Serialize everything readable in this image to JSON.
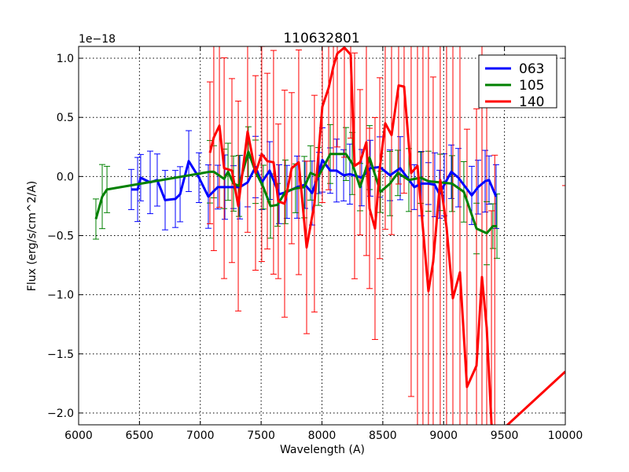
{
  "chart_data": {
    "type": "line",
    "title": "110632801",
    "xlabel": "Wavelength (A)",
    "ylabel": "Flux (erg/s/cm^2/A)",
    "offset_text": "1e−18",
    "xlim": [
      6000,
      10000
    ],
    "ylim": [
      -2.1,
      1.1
    ],
    "xticks": [
      6000,
      6500,
      7000,
      7500,
      8000,
      8500,
      9000,
      9500,
      10000
    ],
    "yticks": [
      1.0,
      0.5,
      0.0,
      -0.5,
      -1.0,
      -1.5,
      -2.0
    ],
    "ytick_labels": [
      "1.0",
      "0.5",
      "0.0",
      "−0.5",
      "−1.0",
      "−1.5",
      "−2.0"
    ],
    "grid": true,
    "legend_position": "top-right",
    "series": [
      {
        "name": "063",
        "color": "#0000ff",
        "x": [
          6433,
          6485,
          6510,
          6588,
          6646,
          6711,
          6795,
          6834,
          6905,
          6989,
          7066,
          7144,
          7202,
          7273,
          7325,
          7389,
          7454,
          7505,
          7570,
          7648,
          7712,
          7796,
          7861,
          7919,
          7977,
          8003,
          8068,
          8120,
          8178,
          8229,
          8326,
          8397,
          8475,
          8559,
          8643,
          8759,
          8817,
          8875,
          8927,
          8966,
          9005,
          9063,
          9121,
          9231,
          9283,
          9341,
          9373,
          9431
        ],
        "y": [
          -0.11,
          -0.11,
          -0.01,
          -0.05,
          -0.03,
          -0.2,
          -0.19,
          -0.15,
          0.13,
          -0.01,
          -0.17,
          -0.09,
          -0.09,
          -0.09,
          -0.09,
          -0.05,
          0.08,
          -0.05,
          0.05,
          -0.15,
          -0.13,
          -0.09,
          -0.07,
          -0.14,
          0.03,
          0.14,
          0.05,
          0.05,
          0.01,
          0.02,
          -0.01,
          0.07,
          0.08,
          0.01,
          0.07,
          -0.09,
          -0.06,
          -0.06,
          -0.07,
          -0.15,
          -0.07,
          0.04,
          -0.01,
          -0.16,
          -0.09,
          -0.04,
          -0.03,
          -0.17
        ],
        "err": 0.17
      },
      {
        "name": "105",
        "color": "#008000",
        "x": [
          6142,
          6194,
          6233,
          7079,
          7111,
          7196,
          7228,
          7273,
          7318,
          7395,
          7454,
          7518,
          7577,
          7635,
          7699,
          7783,
          7855,
          7906,
          7971,
          8068,
          8197,
          8249,
          8313,
          8391,
          8481,
          8559,
          8624,
          8714,
          8811,
          8875,
          8972,
          9069,
          9166,
          9270,
          9354,
          9405,
          9438
        ],
        "y": [
          -0.36,
          -0.17,
          -0.11,
          0.04,
          0.04,
          -0.02,
          0.04,
          -0.06,
          -0.08,
          0.21,
          0.04,
          -0.09,
          -0.25,
          -0.24,
          -0.13,
          -0.1,
          -0.09,
          0.03,
          0.0,
          0.19,
          0.19,
          0.11,
          -0.09,
          0.16,
          -0.13,
          -0.06,
          0.03,
          -0.03,
          -0.01,
          -0.04,
          -0.05,
          -0.06,
          -0.13,
          -0.44,
          -0.48,
          -0.42,
          -0.42
        ],
        "err": 0.17
      },
      {
        "name": "140",
        "color": "#ff0000",
        "x": [
          7079,
          7111,
          7157,
          7196,
          7260,
          7312,
          7389,
          7454,
          7505,
          7551,
          7602,
          7641,
          7693,
          7751,
          7809,
          7874,
          7938,
          8003,
          8055,
          8094,
          8126,
          8184,
          8236,
          8268,
          8313,
          8365,
          8391,
          8436,
          8475,
          8520,
          8572,
          8630,
          8675,
          8733,
          8785,
          8830,
          8875,
          8914,
          8972,
          9024,
          9076,
          9134,
          9192,
          9270,
          9315,
          9354,
          9393,
          9420,
          10000
        ],
        "y": [
          0.2,
          0.33,
          0.43,
          0.07,
          0.05,
          -0.25,
          0.38,
          0.03,
          0.19,
          0.13,
          0.12,
          -0.21,
          -0.23,
          0.07,
          0.12,
          -0.6,
          -0.23,
          0.59,
          0.75,
          0.93,
          1.04,
          1.09,
          1.03,
          0.09,
          0.12,
          0.29,
          -0.27,
          -0.44,
          0.07,
          0.45,
          0.35,
          0.77,
          0.76,
          0.03,
          0.09,
          -0.44,
          -0.97,
          -0.72,
          -0.03,
          -0.43,
          -1.03,
          -0.81,
          -1.78,
          -1.6,
          -0.85,
          -1.28,
          -2.09,
          -2.2,
          -1.65
        ],
        "err": 0.6
      }
    ]
  }
}
